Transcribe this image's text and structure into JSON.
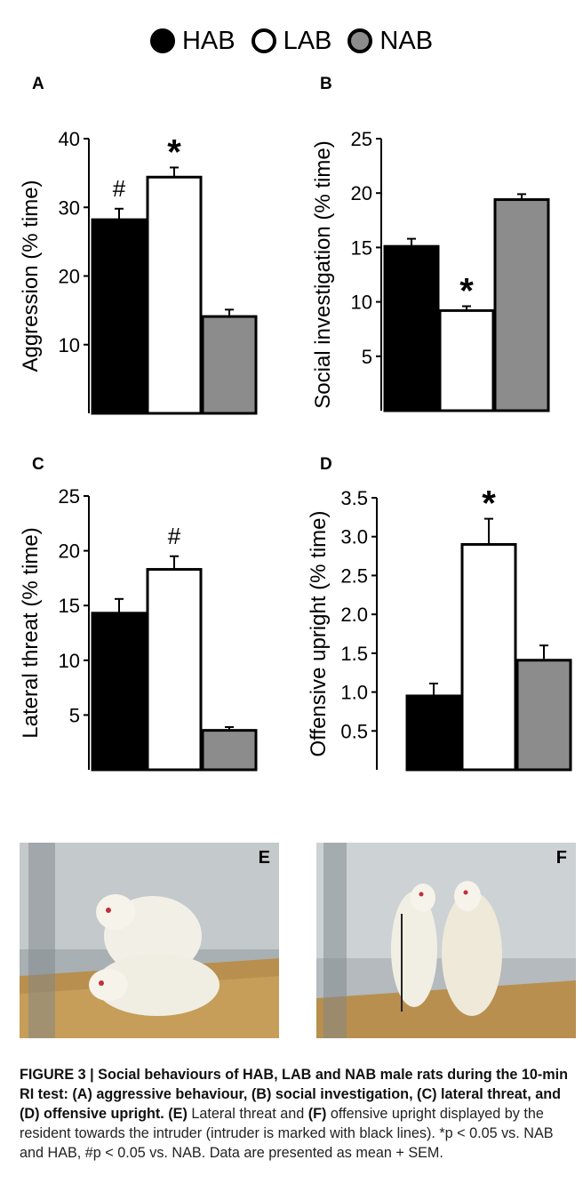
{
  "legend": [
    {
      "label": "HAB",
      "color": "#000000"
    },
    {
      "label": "LAB",
      "color": "#ffffff"
    },
    {
      "label": "NAB",
      "color": "#8c8c8c"
    }
  ],
  "chart_data": [
    {
      "panel": "A",
      "type": "bar",
      "categories": [
        "HAB",
        "LAB",
        "NAB"
      ],
      "values": [
        28.2,
        34.4,
        14.1
      ],
      "errors": [
        1.6,
        1.4,
        1.0
      ],
      "annotations": [
        "#",
        "*",
        ""
      ],
      "ylabel": "Aggression (% time)",
      "ylim": [
        0,
        40
      ],
      "yticks": [
        10,
        20,
        30,
        40
      ]
    },
    {
      "panel": "B",
      "type": "bar",
      "categories": [
        "HAB",
        "LAB",
        "NAB"
      ],
      "values": [
        15.1,
        9.2,
        19.4
      ],
      "errors": [
        0.7,
        0.4,
        0.5
      ],
      "annotations": [
        "",
        "*",
        ""
      ],
      "ylabel": "Social investigation (% time)",
      "ylim": [
        0,
        25
      ],
      "yticks": [
        5,
        10,
        15,
        20,
        25
      ]
    },
    {
      "panel": "C",
      "type": "bar",
      "categories": [
        "HAB",
        "LAB",
        "NAB"
      ],
      "values": [
        14.3,
        18.3,
        3.6
      ],
      "errors": [
        1.3,
        1.2,
        0.3
      ],
      "annotations": [
        "",
        "#",
        ""
      ],
      "ylabel": "Lateral threat (% time)",
      "ylim": [
        0,
        25
      ],
      "yticks": [
        5,
        10,
        15,
        20,
        25
      ]
    },
    {
      "panel": "D",
      "type": "bar",
      "categories": [
        "HAB",
        "LAB",
        "NAB"
      ],
      "values": [
        0.95,
        2.9,
        1.41
      ],
      "errors": [
        0.16,
        0.33,
        0.19
      ],
      "annotations": [
        "",
        "*",
        ""
      ],
      "ylabel": "Offensive upright (% time)",
      "ylim": [
        0,
        3.5
      ],
      "yticks": [
        0.5,
        1.0,
        1.5,
        2.0,
        2.5,
        3.0,
        3.5
      ]
    }
  ],
  "photos": [
    {
      "label": "E",
      "icon": "rats-lateral-threat-photo"
    },
    {
      "label": "F",
      "icon": "rats-offensive-upright-photo"
    }
  ],
  "caption": {
    "title": "FIGURE 3 | Social behaviours of HAB, LAB and NAB male rats during the 10-min RI test: (A) aggressive behaviour, (B) social investigation, (C) lateral threat, and (D) offensive upright.",
    "part1_label": "(E)",
    "part1_text": " Lateral threat and ",
    "part2_label": "(F)",
    "part2_text": " offensive upright displayed by the resident towards the intruder (intruder is marked with black lines). *p < 0.05 vs. NAB and HAB, #p < 0.05 vs. NAB. Data are presented as mean + SEM."
  }
}
